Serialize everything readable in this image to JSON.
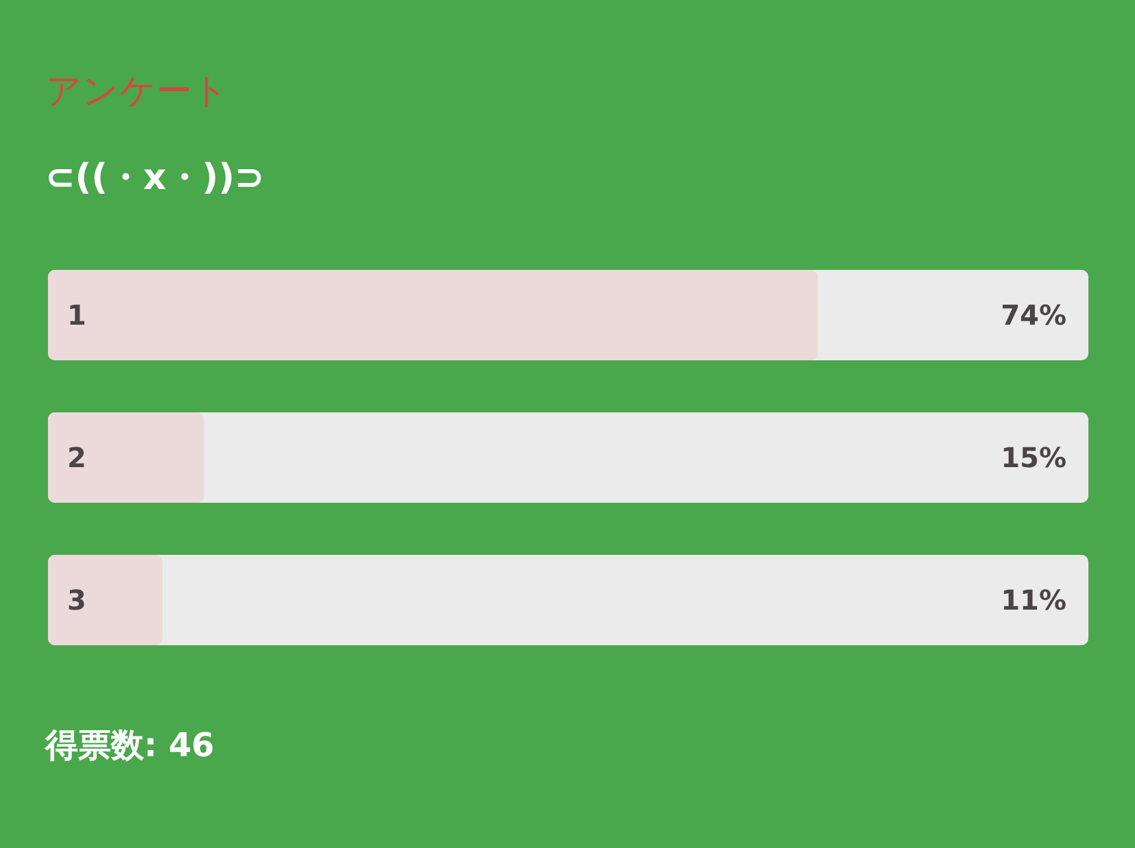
{
  "chart_data": {
    "type": "bar",
    "orientation": "horizontal",
    "title": "アンケート",
    "subtitle": "⊂((・x・))⊃",
    "categories": [
      "1",
      "2",
      "3"
    ],
    "values": [
      74,
      15,
      11
    ],
    "color": "#ecdadb",
    "xlim": [
      0,
      100
    ],
    "value_labels": [
      "74%",
      "15%",
      "11%"
    ],
    "annotations": [
      "得票数: 46"
    ]
  }
}
